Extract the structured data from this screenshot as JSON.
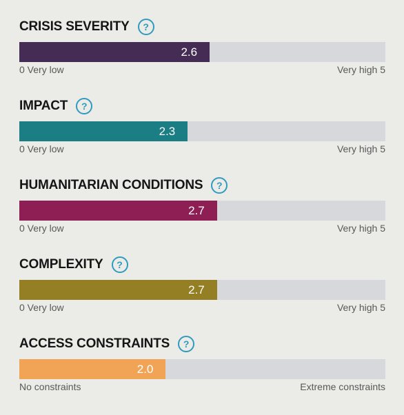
{
  "metrics": [
    {
      "title": "CRISIS SEVERITY",
      "value": 2.6,
      "value_label": "2.6",
      "max": 5,
      "color": "#452c55",
      "min_label": "0 Very low",
      "max_label": "Very high 5",
      "help_icon": "question-mark-icon"
    },
    {
      "title": "IMPACT",
      "value": 2.3,
      "value_label": "2.3",
      "max": 5,
      "color": "#1b7e84",
      "min_label": "0 Very low",
      "max_label": "Very high 5",
      "help_icon": "question-mark-icon"
    },
    {
      "title": "HUMANITARIAN CONDITIONS",
      "value": 2.7,
      "value_label": "2.7",
      "max": 5,
      "color": "#8e1f54",
      "min_label": "0 Very low",
      "max_label": "Very high 5",
      "help_icon": "question-mark-icon"
    },
    {
      "title": "COMPLEXITY",
      "value": 2.7,
      "value_label": "2.7",
      "max": 5,
      "color": "#957f24",
      "min_label": "0 Very low",
      "max_label": "Very high 5",
      "help_icon": "question-mark-icon"
    },
    {
      "title": "ACCESS CONSTRAINTS",
      "value": 2.0,
      "value_label": "2.0",
      "max": 5,
      "color": "#f2a456",
      "min_label": "No constraints",
      "max_label": "Extreme constraints",
      "help_icon": "question-mark-icon"
    }
  ],
  "help_glyph": "?",
  "colors": {
    "background": "#ebebe8",
    "track": "#d6d8dc",
    "help_accent": "#2f9bbd"
  }
}
